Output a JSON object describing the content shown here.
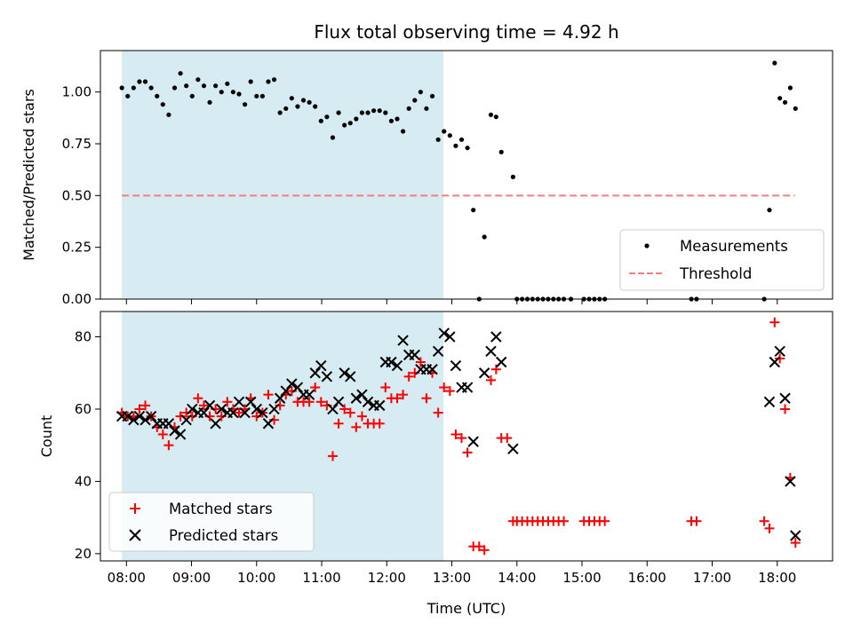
{
  "chart_data": [
    {
      "type": "scatter",
      "panel": "top",
      "title": "Flux total observing time = 4.92 h",
      "xlabel": "",
      "ylabel": "Matched/Predicted stars",
      "xlim": [
        7.6,
        18.85
      ],
      "ylim": [
        0.0,
        1.2
      ],
      "yticks": [
        0.0,
        0.25,
        0.5,
        0.75,
        1.0
      ],
      "ytick_labels": [
        "0.00",
        "0.25",
        "0.50",
        "0.75",
        "1.00"
      ],
      "shaded_span": {
        "x": [
          7.93,
          12.87
        ],
        "color": "#add8e6"
      },
      "legend_position": "lower-right",
      "series": [
        {
          "name": "Measurements",
          "kind": "scatter",
          "color": "#000000",
          "marker": "dot",
          "points": [
            [
              7.93,
              1.02
            ],
            [
              8.02,
              0.98
            ],
            [
              8.11,
              1.02
            ],
            [
              8.2,
              1.05
            ],
            [
              8.29,
              1.05
            ],
            [
              8.38,
              1.02
            ],
            [
              8.47,
              0.98
            ],
            [
              8.56,
              0.94
            ],
            [
              8.65,
              0.89
            ],
            [
              8.74,
              1.02
            ],
            [
              8.83,
              1.09
            ],
            [
              8.92,
              1.03
            ],
            [
              9.01,
              0.98
            ],
            [
              9.1,
              1.06
            ],
            [
              9.19,
              1.03
            ],
            [
              9.28,
              0.95
            ],
            [
              9.37,
              1.03
            ],
            [
              9.46,
              1.0
            ],
            [
              9.55,
              1.04
            ],
            [
              9.64,
              1.0
            ],
            [
              9.73,
              0.99
            ],
            [
              9.82,
              0.94
            ],
            [
              9.91,
              1.05
            ],
            [
              10.0,
              0.98
            ],
            [
              10.09,
              0.98
            ],
            [
              10.18,
              1.05
            ],
            [
              10.27,
              1.06
            ],
            [
              10.36,
              0.9
            ],
            [
              10.45,
              0.92
            ],
            [
              10.54,
              0.97
            ],
            [
              10.63,
              0.93
            ],
            [
              10.72,
              0.96
            ],
            [
              10.81,
              0.95
            ],
            [
              10.9,
              0.93
            ],
            [
              10.99,
              0.86
            ],
            [
              11.08,
              0.88
            ],
            [
              11.17,
              0.78
            ],
            [
              11.26,
              0.9
            ],
            [
              11.35,
              0.84
            ],
            [
              11.44,
              0.85
            ],
            [
              11.53,
              0.87
            ],
            [
              11.62,
              0.9
            ],
            [
              11.71,
              0.9
            ],
            [
              11.8,
              0.91
            ],
            [
              11.89,
              0.91
            ],
            [
              11.98,
              0.9
            ],
            [
              12.07,
              0.86
            ],
            [
              12.16,
              0.87
            ],
            [
              12.25,
              0.81
            ],
            [
              12.34,
              0.92
            ],
            [
              12.43,
              0.96
            ],
            [
              12.52,
              1.0
            ],
            [
              12.61,
              0.92
            ],
            [
              12.7,
              0.98
            ],
            [
              12.79,
              0.77
            ],
            [
              12.88,
              0.81
            ],
            [
              12.97,
              0.79
            ],
            [
              13.06,
              0.74
            ],
            [
              13.15,
              0.77
            ],
            [
              13.24,
              0.73
            ],
            [
              13.33,
              0.43
            ],
            [
              13.42,
              0.0
            ],
            [
              13.5,
              0.3
            ],
            [
              13.6,
              0.89
            ],
            [
              13.68,
              0.88
            ],
            [
              13.76,
              0.71
            ],
            [
              13.94,
              0.59
            ],
            [
              14.0,
              0.0
            ],
            [
              14.08,
              0.0
            ],
            [
              14.16,
              0.0
            ],
            [
              14.24,
              0.0
            ],
            [
              14.32,
              0.0
            ],
            [
              14.4,
              0.0
            ],
            [
              14.48,
              0.0
            ],
            [
              14.56,
              0.0
            ],
            [
              14.64,
              0.0
            ],
            [
              14.72,
              0.0
            ],
            [
              14.83,
              0.0
            ],
            [
              15.03,
              0.0
            ],
            [
              15.11,
              0.0
            ],
            [
              15.19,
              0.0
            ],
            [
              15.27,
              0.0
            ],
            [
              15.35,
              0.0
            ],
            [
              16.68,
              0.0
            ],
            [
              16.76,
              0.0
            ],
            [
              17.8,
              0.0
            ],
            [
              17.88,
              0.43
            ],
            [
              17.96,
              1.14
            ],
            [
              18.04,
              0.97
            ],
            [
              18.12,
              0.95
            ],
            [
              18.2,
              1.02
            ],
            [
              18.28,
              0.92
            ]
          ]
        },
        {
          "name": "Threshold",
          "kind": "line",
          "color": "#f08080",
          "style": "dashed",
          "x": [
            7.93,
            18.27
          ],
          "y": [
            0.5,
            0.5
          ]
        }
      ]
    },
    {
      "type": "scatter",
      "panel": "bottom",
      "title": "",
      "xlabel": "Time (UTC)",
      "ylabel": "Count",
      "xlim": [
        7.6,
        18.85
      ],
      "ylim": [
        18,
        87
      ],
      "xticks": [
        8,
        9,
        10,
        11,
        12,
        13,
        14,
        15,
        16,
        17,
        18
      ],
      "xtick_labels": [
        "08:00",
        "09:00",
        "10:00",
        "11:00",
        "12:00",
        "13:00",
        "14:00",
        "15:00",
        "16:00",
        "17:00",
        "18:00"
      ],
      "yticks": [
        20,
        40,
        60,
        80
      ],
      "ytick_labels": [
        "20",
        "40",
        "60",
        "80"
      ],
      "shaded_span": {
        "x": [
          7.93,
          12.87
        ],
        "color": "#add8e6"
      },
      "legend_position": "lower-left",
      "series": [
        {
          "name": "Matched stars",
          "kind": "scatter",
          "color": "#ff0000",
          "marker": "plus",
          "points": [
            [
              7.93,
              59
            ],
            [
              8.02,
              58
            ],
            [
              8.11,
              58
            ],
            [
              8.2,
              60
            ],
            [
              8.29,
              61
            ],
            [
              8.38,
              58
            ],
            [
              8.47,
              55
            ],
            [
              8.56,
              53
            ],
            [
              8.65,
              50
            ],
            [
              8.74,
              55
            ],
            [
              8.83,
              58
            ],
            [
              8.92,
              59
            ],
            [
              9.01,
              58
            ],
            [
              9.1,
              63
            ],
            [
              9.19,
              61
            ],
            [
              9.28,
              58
            ],
            [
              9.37,
              60
            ],
            [
              9.46,
              58
            ],
            [
              9.55,
              62
            ],
            [
              9.64,
              60
            ],
            [
              9.73,
              59
            ],
            [
              9.82,
              60
            ],
            [
              9.91,
              63
            ],
            [
              10.0,
              58
            ],
            [
              10.09,
              59
            ],
            [
              10.18,
              64
            ],
            [
              10.27,
              57
            ],
            [
              10.36,
              61
            ],
            [
              10.45,
              64
            ],
            [
              10.54,
              65
            ],
            [
              10.63,
              62
            ],
            [
              10.72,
              62
            ],
            [
              10.81,
              62
            ],
            [
              10.9,
              66
            ],
            [
              10.99,
              62
            ],
            [
              11.08,
              61
            ],
            [
              11.17,
              47
            ],
            [
              11.26,
              56
            ],
            [
              11.35,
              60
            ],
            [
              11.44,
              59
            ],
            [
              11.53,
              55
            ],
            [
              11.62,
              58
            ],
            [
              11.71,
              56
            ],
            [
              11.8,
              56
            ],
            [
              11.89,
              56
            ],
            [
              11.98,
              66
            ],
            [
              12.07,
              63
            ],
            [
              12.16,
              63
            ],
            [
              12.25,
              64
            ],
            [
              12.34,
              69
            ],
            [
              12.43,
              70
            ],
            [
              12.52,
              73
            ],
            [
              12.61,
              63
            ],
            [
              12.7,
              70
            ],
            [
              12.79,
              59
            ],
            [
              12.88,
              66
            ],
            [
              12.97,
              65
            ],
            [
              13.06,
              53
            ],
            [
              13.15,
              52
            ],
            [
              13.24,
              48
            ],
            [
              13.33,
              22
            ],
            [
              13.42,
              22
            ],
            [
              13.5,
              21
            ],
            [
              13.6,
              68
            ],
            [
              13.68,
              71
            ],
            [
              13.76,
              52
            ],
            [
              13.85,
              52
            ],
            [
              13.94,
              29
            ],
            [
              14.0,
              29
            ],
            [
              14.08,
              29
            ],
            [
              14.16,
              29
            ],
            [
              14.24,
              29
            ],
            [
              14.32,
              29
            ],
            [
              14.4,
              29
            ],
            [
              14.48,
              29
            ],
            [
              14.56,
              29
            ],
            [
              14.64,
              29
            ],
            [
              14.72,
              29
            ],
            [
              15.03,
              29
            ],
            [
              15.11,
              29
            ],
            [
              15.19,
              29
            ],
            [
              15.27,
              29
            ],
            [
              15.35,
              29
            ],
            [
              16.68,
              29
            ],
            [
              16.76,
              29
            ],
            [
              17.8,
              29
            ],
            [
              17.88,
              27
            ],
            [
              17.96,
              84
            ],
            [
              18.04,
              74
            ],
            [
              18.12,
              60
            ],
            [
              18.2,
              41
            ],
            [
              18.28,
              23
            ]
          ]
        },
        {
          "name": "Predicted stars",
          "kind": "scatter",
          "color": "#000000",
          "marker": "cross",
          "points": [
            [
              7.93,
              58
            ],
            [
              8.02,
              58
            ],
            [
              8.11,
              57
            ],
            [
              8.2,
              58
            ],
            [
              8.29,
              57
            ],
            [
              8.38,
              58
            ],
            [
              8.47,
              56
            ],
            [
              8.56,
              56
            ],
            [
              8.65,
              56
            ],
            [
              8.74,
              54
            ],
            [
              8.83,
              53
            ],
            [
              8.92,
              57
            ],
            [
              9.01,
              60
            ],
            [
              9.1,
              59
            ],
            [
              9.19,
              59
            ],
            [
              9.28,
              61
            ],
            [
              9.37,
              56
            ],
            [
              9.46,
              60
            ],
            [
              9.55,
              59
            ],
            [
              9.64,
              59
            ],
            [
              9.73,
              62
            ],
            [
              9.82,
              59
            ],
            [
              9.91,
              62
            ],
            [
              10.0,
              60
            ],
            [
              10.09,
              59
            ],
            [
              10.18,
              56
            ],
            [
              10.27,
              60
            ],
            [
              10.36,
              63
            ],
            [
              10.45,
              65
            ],
            [
              10.54,
              67
            ],
            [
              10.63,
              66
            ],
            [
              10.72,
              64
            ],
            [
              10.81,
              64
            ],
            [
              10.9,
              70
            ],
            [
              10.99,
              72
            ],
            [
              11.08,
              69
            ],
            [
              11.17,
              60
            ],
            [
              11.26,
              62
            ],
            [
              11.35,
              70
            ],
            [
              11.44,
              69
            ],
            [
              11.53,
              63
            ],
            [
              11.62,
              64
            ],
            [
              11.71,
              62
            ],
            [
              11.8,
              61
            ],
            [
              11.89,
              61
            ],
            [
              11.98,
              73
            ],
            [
              12.07,
              73
            ],
            [
              12.16,
              72
            ],
            [
              12.25,
              79
            ],
            [
              12.34,
              75
            ],
            [
              12.43,
              75
            ],
            [
              12.52,
              71
            ],
            [
              12.61,
              71
            ],
            [
              12.7,
              71
            ],
            [
              12.79,
              76
            ],
            [
              12.88,
              81
            ],
            [
              12.97,
              80
            ],
            [
              13.06,
              72
            ],
            [
              13.15,
              66
            ],
            [
              13.24,
              66
            ],
            [
              13.33,
              51
            ],
            [
              13.5,
              70
            ],
            [
              13.6,
              76
            ],
            [
              13.68,
              80
            ],
            [
              13.76,
              73
            ],
            [
              13.94,
              49
            ],
            [
              17.88,
              62
            ],
            [
              17.96,
              73
            ],
            [
              18.04,
              76
            ],
            [
              18.12,
              63
            ],
            [
              18.2,
              40
            ],
            [
              18.28,
              25
            ]
          ]
        }
      ]
    }
  ]
}
